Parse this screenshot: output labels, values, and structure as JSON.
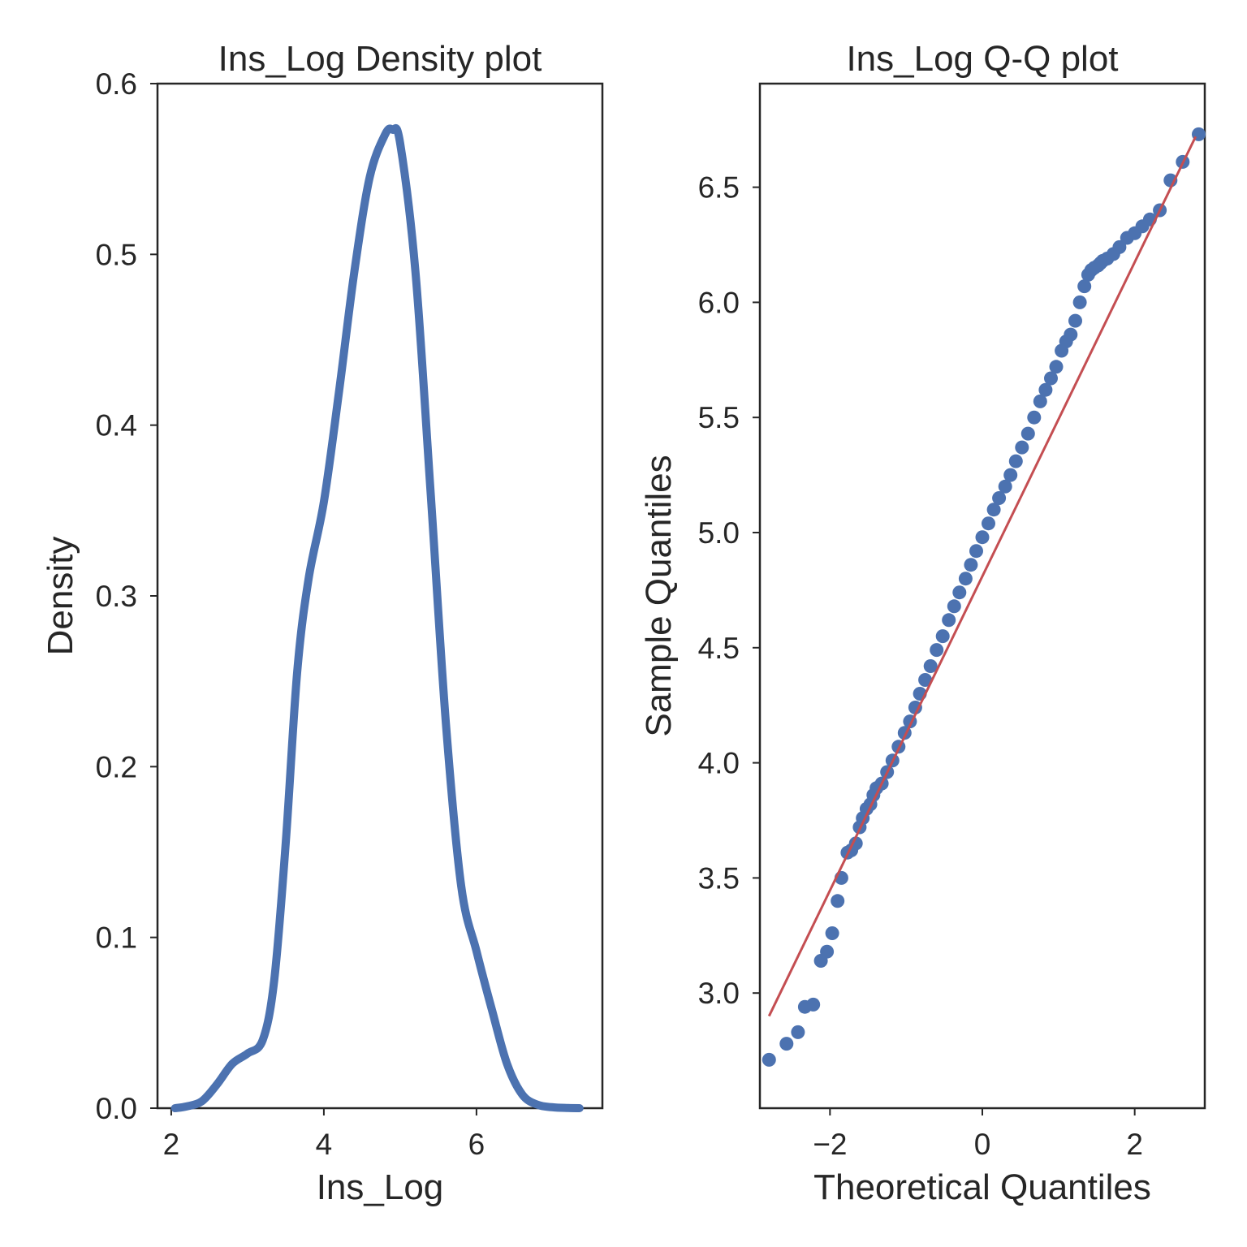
{
  "chart_data": [
    {
      "type": "line",
      "title": "Ins_Log Density plot",
      "xlabel": "Ins_Log",
      "ylabel": "Density",
      "xlim": [
        1.82,
        7.65
      ],
      "ylim": [
        0,
        0.6
      ],
      "xticks": [
        2,
        4,
        6
      ],
      "yticks": [
        0.0,
        0.1,
        0.2,
        0.3,
        0.4,
        0.5,
        0.6
      ],
      "xtick_labels": [
        "2",
        "4",
        "6"
      ],
      "ytick_labels": [
        "0.0",
        "0.1",
        "0.2",
        "0.3",
        "0.4",
        "0.5",
        "0.6"
      ],
      "grid": false,
      "color": "#4c72b0",
      "x": [
        2.05,
        2.2,
        2.4,
        2.6,
        2.8,
        3.0,
        3.2,
        3.35,
        3.5,
        3.65,
        3.8,
        4.0,
        4.2,
        4.4,
        4.6,
        4.8,
        4.9,
        5.0,
        5.2,
        5.4,
        5.6,
        5.8,
        6.0,
        6.2,
        6.4,
        6.6,
        6.8,
        7.0,
        7.2,
        7.35
      ],
      "y": [
        0.0,
        0.001,
        0.004,
        0.014,
        0.026,
        0.032,
        0.04,
        0.075,
        0.155,
        0.255,
        0.31,
        0.355,
        0.42,
        0.49,
        0.545,
        0.57,
        0.573,
        0.565,
        0.49,
        0.36,
        0.225,
        0.13,
        0.092,
        0.058,
        0.026,
        0.008,
        0.002,
        0.0005,
        0.0001,
        0.0
      ]
    },
    {
      "type": "scatter",
      "title": "Ins_Log Q-Q plot",
      "xlabel": "Theoretical Quantiles",
      "ylabel": "Sample Quantiles",
      "xlim": [
        -2.92,
        2.92
      ],
      "ylim": [
        2.5,
        6.95
      ],
      "xticks": [
        -2,
        0,
        2
      ],
      "yticks": [
        3.0,
        3.5,
        4.0,
        4.5,
        5.0,
        5.5,
        6.0,
        6.5
      ],
      "xtick_labels": [
        "−2",
        "0",
        "2"
      ],
      "ytick_labels": [
        "3.0",
        "3.5",
        "4.0",
        "4.5",
        "5.0",
        "5.5",
        "6.0",
        "6.5"
      ],
      "grid": false,
      "marker_color": "#4c72b0",
      "line_color": "#c44e52",
      "reference_line": {
        "x": [
          -2.8,
          2.8
        ],
        "y": [
          2.9,
          6.72
        ]
      },
      "points": {
        "x": [
          -2.8,
          -2.57,
          -2.42,
          -2.33,
          -2.22,
          -2.12,
          -2.04,
          -1.97,
          -1.9,
          -1.85,
          -1.77,
          -1.72,
          -1.66,
          -1.61,
          -1.57,
          -1.52,
          -1.47,
          -1.43,
          -1.39,
          -1.32,
          -1.25,
          -1.18,
          -1.1,
          -1.02,
          -0.95,
          -0.88,
          -0.82,
          -0.75,
          -0.68,
          -0.6,
          -0.52,
          -0.44,
          -0.37,
          -0.3,
          -0.22,
          -0.15,
          -0.08,
          0.0,
          0.08,
          0.15,
          0.22,
          0.3,
          0.37,
          0.44,
          0.52,
          0.6,
          0.68,
          0.76,
          0.83,
          0.9,
          0.97,
          1.04,
          1.1,
          1.16,
          1.22,
          1.28,
          1.34,
          1.39,
          1.43,
          1.47,
          1.52,
          1.55,
          1.58,
          1.64,
          1.72,
          1.8,
          1.9,
          2.0,
          2.1,
          2.2,
          2.33,
          2.47,
          2.63,
          2.84
        ],
        "y": [
          2.71,
          2.78,
          2.83,
          2.94,
          2.95,
          3.14,
          3.18,
          3.26,
          3.4,
          3.5,
          3.61,
          3.62,
          3.65,
          3.72,
          3.76,
          3.8,
          3.82,
          3.86,
          3.89,
          3.91,
          3.96,
          4.01,
          4.07,
          4.13,
          4.18,
          4.24,
          4.3,
          4.36,
          4.42,
          4.49,
          4.55,
          4.62,
          4.68,
          4.74,
          4.8,
          4.86,
          4.92,
          4.98,
          5.04,
          5.1,
          5.15,
          5.2,
          5.25,
          5.31,
          5.37,
          5.43,
          5.5,
          5.57,
          5.62,
          5.67,
          5.72,
          5.79,
          5.83,
          5.86,
          5.92,
          6.0,
          6.07,
          6.12,
          6.14,
          6.15,
          6.16,
          6.17,
          6.18,
          6.19,
          6.21,
          6.24,
          6.28,
          6.3,
          6.33,
          6.36,
          6.4,
          6.53,
          6.61,
          6.73
        ]
      }
    }
  ]
}
